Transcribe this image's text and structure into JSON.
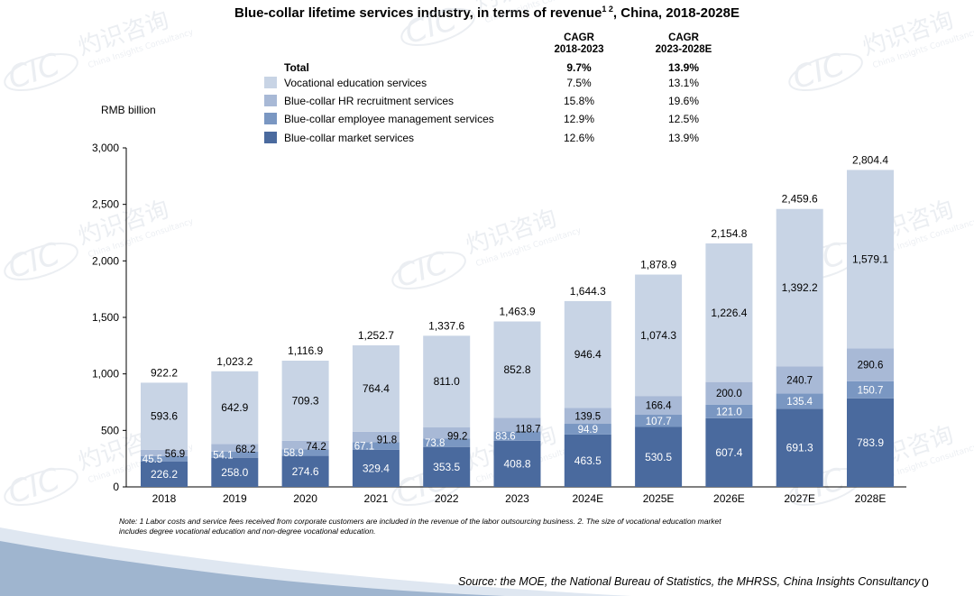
{
  "chart_data": {
    "type": "bar",
    "stacked": true,
    "title": "Blue-collar lifetime services industry, in terms of revenue",
    "title_superscript": "1 2",
    "title_suffix": ", China, 2018-2028E",
    "ylabel": "RMB billion",
    "ylim": [
      0,
      3000
    ],
    "yticks": [
      "0",
      "500",
      "1,000",
      "1,500",
      "2,000",
      "2,500",
      "3,000"
    ],
    "categories": [
      "2018",
      "2019",
      "2020",
      "2021",
      "2022",
      "2023",
      "2024E",
      "2025E",
      "2026E",
      "2027E",
      "2028E"
    ],
    "series": [
      {
        "name": "Blue-collar market services",
        "color": "#4a6a9e",
        "values": [
          226.2,
          258.0,
          274.6,
          329.4,
          353.5,
          408.8,
          463.5,
          530.5,
          607.4,
          691.3,
          783.9
        ],
        "labels": [
          "226.2",
          "258.0",
          "274.6",
          "329.4",
          "353.5",
          "408.8",
          "463.5",
          "530.5",
          "607.4",
          "691.3",
          "783.9"
        ]
      },
      {
        "name": "Blue-collar employee management services",
        "color": "#7a97c2",
        "values": [
          45.5,
          54.1,
          58.9,
          67.1,
          73.8,
          83.6,
          94.9,
          107.7,
          121.0,
          135.4,
          150.7
        ],
        "labels": [
          "45.5",
          "54.1",
          "58.9",
          "67.1",
          "73.8",
          "83.6",
          "94.9",
          "107.7",
          "121.0",
          "135.4",
          "150.7"
        ]
      },
      {
        "name": "Blue-collar HR recruitment services",
        "color": "#a8b9d6",
        "values": [
          56.9,
          68.2,
          74.2,
          91.8,
          99.2,
          118.7,
          139.5,
          166.4,
          200.0,
          240.7,
          290.6
        ],
        "labels": [
          "56.9",
          "68.2",
          "74.2",
          "91.8",
          "99.2",
          "118.7",
          "139.5",
          "166.4",
          "200.0",
          "240.7",
          "290.6"
        ]
      },
      {
        "name": "Vocational education services",
        "color": "#c8d4e5",
        "values": [
          593.6,
          642.9,
          709.3,
          764.4,
          811.0,
          852.8,
          946.4,
          1074.3,
          1226.4,
          1392.2,
          1579.1
        ],
        "labels": [
          "593.6",
          "642.9",
          "709.3",
          "764.4",
          "811.0",
          "852.8",
          "946.4",
          "1,074.3",
          "1,226.4",
          "1,392.2",
          "1,579.1"
        ]
      }
    ],
    "totals": [
      922.2,
      1023.2,
      1116.9,
      1252.7,
      1337.6,
      1463.9,
      1644.3,
      1878.9,
      2154.8,
      2459.6,
      2804.4
    ],
    "total_labels": [
      "922.2",
      "1,023.2",
      "1,116.9",
      "1,252.7",
      "1,337.6",
      "1,463.9",
      "1,644.3",
      "1,878.9",
      "2,154.8",
      "2,459.6",
      "2,804.4"
    ],
    "cagr_table": {
      "headers": [
        "CAGR\n2018-2023",
        "CAGR\n2023-2028E"
      ],
      "rows": [
        {
          "label": "Total",
          "bold": true,
          "values": [
            "9.7%",
            "13.9%"
          ]
        },
        {
          "label": "Vocational education services",
          "values": [
            "7.5%",
            "13.1%"
          ]
        },
        {
          "label": "Blue-collar HR recruitment services",
          "values": [
            "15.8%",
            "19.6%"
          ]
        },
        {
          "label": "Blue-collar employee management services",
          "values": [
            "12.9%",
            "12.5%"
          ]
        },
        {
          "label": "Blue-collar market services",
          "values": [
            "12.6%",
            "13.9%"
          ]
        }
      ]
    },
    "grid": false,
    "legend_position": "top-left"
  },
  "watermark": {
    "cn": "灼识咨询",
    "en": "China Insights Consultancy",
    "mark": "CIC"
  },
  "note": "Note: 1 Labor costs and service fees received from corporate customers are included in the revenue of the labor outsourcing business. 2. The size of vocational education market includes degree vocational education and non-degree vocational education.",
  "source": "Source: the MOE, the National Bureau of Statistics, the MHRSS, China Insights Consultancy",
  "page_number": "0"
}
